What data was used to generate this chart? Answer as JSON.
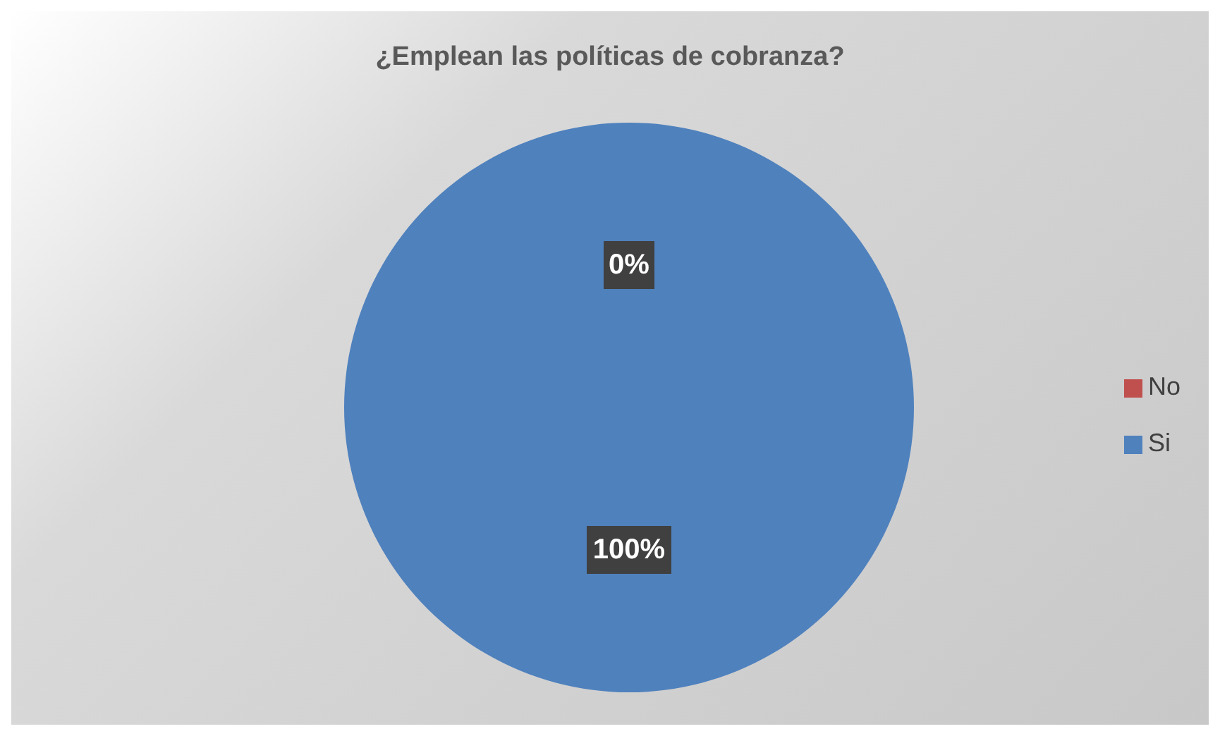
{
  "chart_data": {
    "type": "pie",
    "title": "¿Emplean las políticas de cobranza?",
    "categories": [
      "Si",
      "No"
    ],
    "values": [
      100,
      0
    ],
    "colors": [
      "#4f81bd",
      "#c0504d"
    ],
    "value_labels": [
      "100%",
      "0%"
    ],
    "legend": "right"
  }
}
